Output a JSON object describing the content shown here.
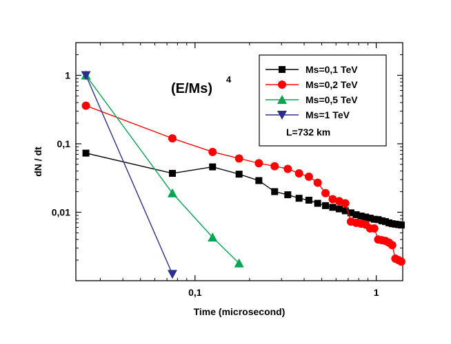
{
  "chart_data": {
    "type": "line",
    "xlabel": "Time (microsecond)",
    "ylabel": "dN / dt",
    "xscale": "log",
    "yscale": "log",
    "xlim": [
      0.022,
      1.4
    ],
    "ylim": [
      0.001,
      3
    ],
    "x_ticks": [
      {
        "value": 0.1,
        "label": "0,1"
      },
      {
        "value": 1,
        "label": "1"
      }
    ],
    "y_ticks": [
      {
        "value": 0.01,
        "label": "0,01"
      },
      {
        "value": 0.1,
        "label": "0,1"
      },
      {
        "value": 1,
        "label": "1"
      }
    ],
    "grid": false,
    "legend_position": "top-right",
    "annotation": {
      "base": "(E/Ms)",
      "exponent": "4"
    },
    "distance_label": "L=732 km",
    "series": [
      {
        "name": "Ms=0,1  TeV",
        "color": "#000000",
        "marker": "square",
        "x": [
          0.025,
          0.075,
          0.125,
          0.175,
          0.225,
          0.275,
          0.325,
          0.375,
          0.425,
          0.475,
          0.525,
          0.575,
          0.625,
          0.675,
          0.725,
          0.775,
          0.825,
          0.875,
          0.925,
          0.975,
          1.025,
          1.075,
          1.125,
          1.175,
          1.225,
          1.275,
          1.325,
          1.375
        ],
        "y": [
          0.073,
          0.037,
          0.046,
          0.036,
          0.029,
          0.02,
          0.018,
          0.016,
          0.015,
          0.0135,
          0.0125,
          0.0118,
          0.0112,
          0.0105,
          0.0098,
          0.0092,
          0.0088,
          0.0085,
          0.0082,
          0.0079,
          0.0078,
          0.0075,
          0.0073,
          0.007,
          0.0068,
          0.0067,
          0.0066,
          0.0065
        ]
      },
      {
        "name": "Ms=0,2  TeV",
        "color": "#ff0000",
        "marker": "circle",
        "x": [
          0.025,
          0.075,
          0.125,
          0.175,
          0.225,
          0.275,
          0.325,
          0.375,
          0.425,
          0.475,
          0.525,
          0.575,
          0.625,
          0.675,
          0.725,
          0.775,
          0.825,
          0.875,
          0.925,
          0.975,
          1.025,
          1.075,
          1.125,
          1.175,
          1.225,
          1.275,
          1.325,
          1.375
        ],
        "y": [
          0.36,
          0.12,
          0.076,
          0.061,
          0.052,
          0.047,
          0.043,
          0.037,
          0.033,
          0.027,
          0.019,
          0.0155,
          0.0145,
          0.0135,
          0.0073,
          0.007,
          0.0068,
          0.0066,
          0.0058,
          0.0058,
          0.004,
          0.0039,
          0.0038,
          0.0036,
          0.0033,
          0.0021,
          0.002,
          0.0019
        ]
      },
      {
        "name": "Ms=0,5  TeV",
        "color": "#00a651",
        "marker": "triangle-up",
        "x": [
          0.025,
          0.075,
          0.125,
          0.175
        ],
        "y": [
          1.0,
          0.019,
          0.0043,
          0.0018
        ]
      },
      {
        "name": "Ms=1  TeV",
        "color": "#2b2e8a",
        "marker": "triangle-down",
        "x": [
          0.025,
          0.075
        ],
        "y": [
          1.0,
          0.00125
        ]
      }
    ]
  }
}
